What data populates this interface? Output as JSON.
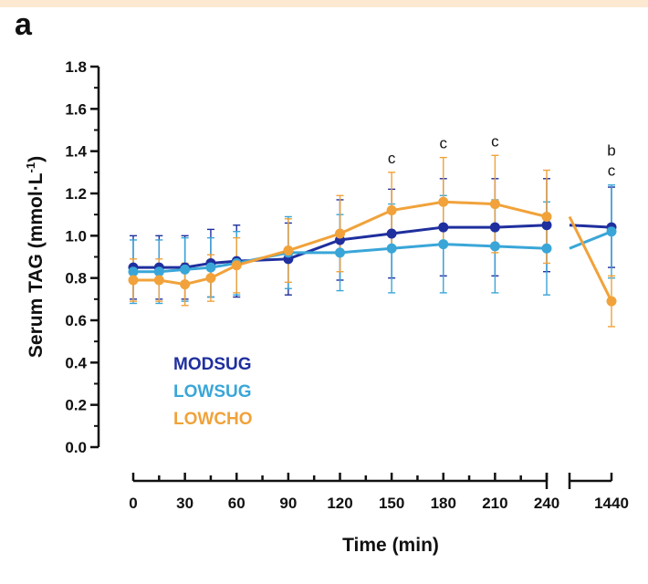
{
  "panel_label": "a",
  "chart_data": {
    "type": "line",
    "ylabel": "Serum TAG (mmol·L",
    "ylabel_sup": "-1",
    "ylabel_end": ")",
    "xlabel": "Time (min)",
    "ylim": [
      0,
      1.8
    ],
    "yticks": [
      "0.0",
      "0.2",
      "0.4",
      "0.6",
      "0.8",
      "1.0",
      "1.2",
      "1.4",
      "1.6",
      "1.8"
    ],
    "xticks": [
      "0",
      "30",
      "60",
      "90",
      "120",
      "150",
      "180",
      "210",
      "240",
      "1440"
    ],
    "x": [
      0,
      15,
      30,
      45,
      60,
      90,
      120,
      150,
      180,
      210,
      240,
      1440
    ],
    "legend_placement": "lower-left",
    "series": [
      {
        "name": "MODSUG",
        "color": "#1f2f9e",
        "values": [
          0.85,
          0.85,
          0.85,
          0.87,
          0.88,
          0.89,
          0.98,
          1.01,
          1.04,
          1.04,
          1.05,
          1.04
        ],
        "err": [
          0.15,
          0.15,
          0.15,
          0.16,
          0.17,
          0.17,
          0.19,
          0.21,
          0.23,
          0.23,
          0.22,
          0.19
        ]
      },
      {
        "name": "LOWSUG",
        "color": "#3aa6d8",
        "values": [
          0.83,
          0.83,
          0.84,
          0.85,
          0.87,
          0.92,
          0.92,
          0.94,
          0.96,
          0.95,
          0.94,
          1.02
        ],
        "err": [
          0.15,
          0.15,
          0.15,
          0.14,
          0.15,
          0.17,
          0.18,
          0.21,
          0.23,
          0.22,
          0.22,
          0.22
        ]
      },
      {
        "name": "LOWCHO",
        "color": "#f1a23a",
        "values": [
          0.79,
          0.79,
          0.77,
          0.8,
          0.86,
          0.93,
          1.01,
          1.12,
          1.16,
          1.15,
          1.09,
          0.69
        ],
        "err": [
          0.1,
          0.1,
          0.1,
          0.11,
          0.13,
          0.15,
          0.18,
          0.18,
          0.21,
          0.23,
          0.22,
          0.12
        ]
      }
    ],
    "annotations": [
      {
        "x": 150,
        "text": "c"
      },
      {
        "x": 180,
        "text": "c"
      },
      {
        "x": 210,
        "text": "c"
      },
      {
        "x": 1440,
        "text": "b"
      },
      {
        "x": 1440,
        "text": "c"
      }
    ]
  }
}
